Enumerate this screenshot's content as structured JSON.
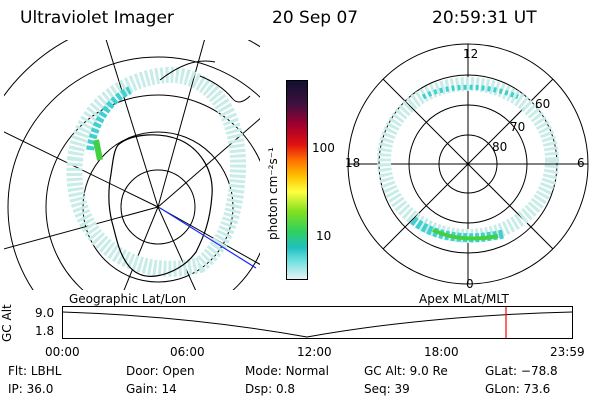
{
  "header": {
    "instrument": "Ultraviolet Imager",
    "date": "20 Sep 07",
    "time": "20:59:31 UT"
  },
  "colorbar": {
    "label": "photon cm⁻²s⁻¹",
    "ticks": [
      "100",
      "10"
    ]
  },
  "geo_map": {
    "name": "Geographic Lat/Lon"
  },
  "polar_plot": {
    "name": "Apex MLat/MLT",
    "mlt_labels": {
      "top": "12",
      "left": "18",
      "right": "6",
      "bottom": "0"
    },
    "lat_labels": [
      "60",
      "70",
      "80"
    ]
  },
  "altitude_strip": {
    "ylabel": "GC Alt",
    "yticks": [
      "9.0",
      "1.8"
    ],
    "xticks": [
      "00:00",
      "06:00",
      "12:00",
      "18:00",
      "23:59"
    ],
    "marker_time": "20:59",
    "marker_color": "#ff0000"
  },
  "footer": {
    "row1": [
      {
        "label": "Flt:",
        "value": "LBHL"
      },
      {
        "label": "Door:",
        "value": "Open"
      },
      {
        "label": "Mode:",
        "value": "Normal"
      },
      {
        "label": "GC Alt:",
        "value": "9.0 Re"
      },
      {
        "label": "GLat:",
        "value": "−78.8"
      }
    ],
    "row2": [
      {
        "label": "IP:",
        "value": "36.0"
      },
      {
        "label": "Gain:",
        "value": "14"
      },
      {
        "label": "Dsp:",
        "value": "0.8"
      },
      {
        "label": "Seq:",
        "value": "39"
      },
      {
        "label": "GLon:",
        "value": "73.6"
      }
    ]
  },
  "colors": {
    "grid": "#000000",
    "aurora_low": "#c8ece8",
    "aurora_mid": "#40d0d0",
    "aurora_high": "#40d040",
    "track": "#1a2cff"
  }
}
